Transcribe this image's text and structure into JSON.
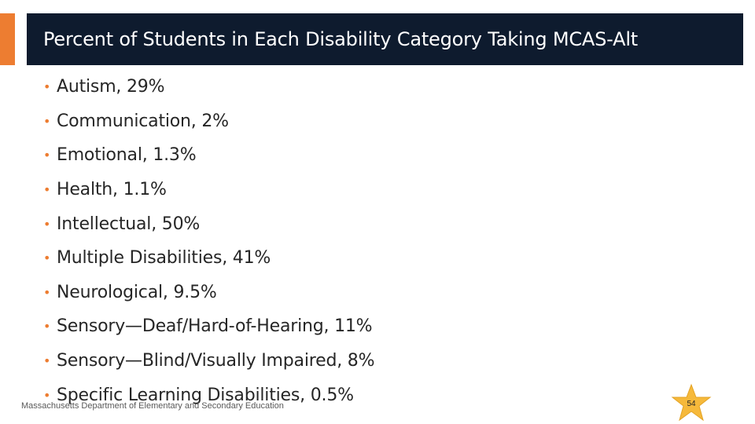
{
  "slide": {
    "title": "Percent of Students in Each Disability Category Taking MCAS-Alt",
    "accent_color": "#ed7d31",
    "title_bar_color": "#0e1b2e",
    "bullet_icon": "bullet-dot",
    "bullets": [
      "Autism, 29%",
      "Communication, 2%",
      "Emotional, 1.3%",
      "Health, 1.1%",
      "Intellectual, 50%",
      "Multiple Disabilities, 41%",
      "Neurological, 9.5%",
      "Sensory—Deaf/Hard-of-Hearing, 11%",
      "Sensory—Blind/Visually Impaired, 8%",
      "Specific Learning Disabilities, 0.5%"
    ]
  },
  "footer": {
    "organization": "Massachusetts Department of Elementary and Secondary Education",
    "page_number": "54",
    "page_badge_icon": "star-icon",
    "badge_color": "#f6b93b"
  }
}
